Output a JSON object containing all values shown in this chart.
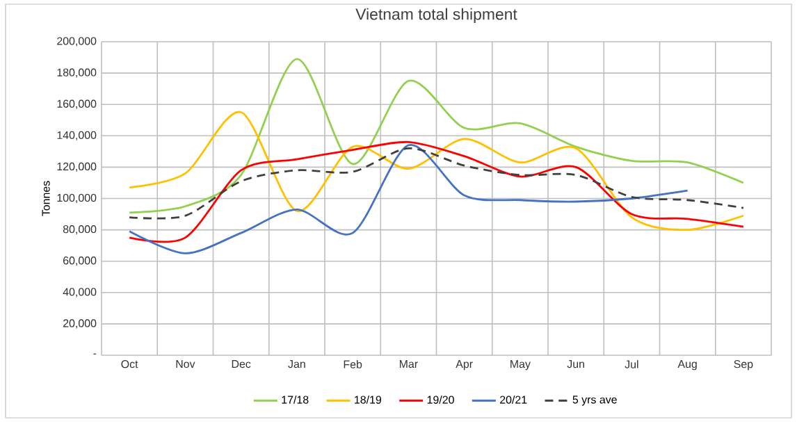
{
  "chart_data": {
    "type": "line",
    "title": "Vietnam total shipment",
    "ylabel": "Tonnes",
    "categories": [
      "Oct",
      "Nov",
      "Dec",
      "Jan",
      "Feb",
      "Mar",
      "Apr",
      "May",
      "Jun",
      "Jul",
      "Aug",
      "Sep"
    ],
    "series": [
      {
        "name": "17/18",
        "color": "#92d050",
        "values": [
          91000,
          95000,
          115000,
          189000,
          122000,
          175000,
          145000,
          148000,
          133000,
          124000,
          123000,
          110000
        ]
      },
      {
        "name": "18/19",
        "color": "#ffc000",
        "values": [
          107000,
          116000,
          155000,
          92000,
          133000,
          119000,
          138000,
          123000,
          132000,
          88000,
          80000,
          89000
        ]
      },
      {
        "name": "19/20",
        "color": "#ff0000",
        "values": [
          75000,
          75000,
          118000,
          125000,
          131000,
          136000,
          127000,
          114000,
          120000,
          90000,
          87000,
          82000
        ]
      },
      {
        "name": "20/21",
        "color": "#4472c4",
        "values": [
          79000,
          65000,
          78000,
          93000,
          78000,
          134000,
          102000,
          99000,
          98000,
          100000,
          105000,
          null
        ]
      },
      {
        "name": "5 yrs ave",
        "color": "#404040",
        "line_style": "dashed",
        "values": [
          88000,
          89000,
          111000,
          118000,
          117000,
          132000,
          121000,
          115000,
          115000,
          101000,
          99000,
          94000
        ]
      }
    ],
    "ylim": [
      0,
      200000
    ],
    "yticks": [
      {
        "value": 0,
        "label": "-"
      },
      {
        "value": 20000,
        "label": "20,000"
      },
      {
        "value": 40000,
        "label": "40,000"
      },
      {
        "value": 60000,
        "label": "60,000"
      },
      {
        "value": 80000,
        "label": "80,000"
      },
      {
        "value": 100000,
        "label": "100,000"
      },
      {
        "value": 120000,
        "label": "120,000"
      },
      {
        "value": 140000,
        "label": "140,000"
      },
      {
        "value": 160000,
        "label": "160,000"
      },
      {
        "value": 180000,
        "label": "180,000"
      },
      {
        "value": 200000,
        "label": "200,000"
      }
    ],
    "grid": true,
    "legend": "bottom",
    "marker": "none",
    "line_style": "solid"
  }
}
